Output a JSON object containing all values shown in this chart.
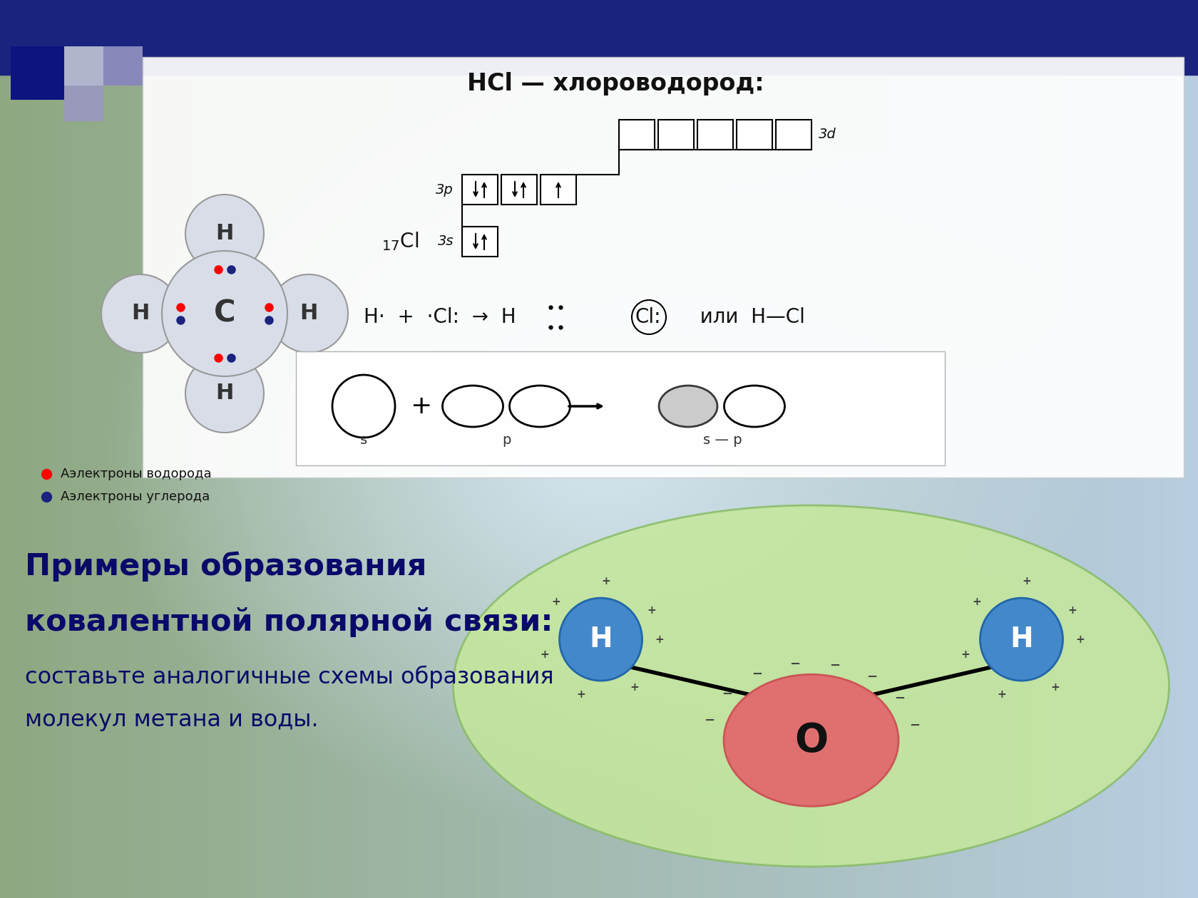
{
  "bg_top_color": "#8fa882",
  "bg_bottom_color": "#c5d8e8",
  "blue_bar_color": "#1a237e",
  "title_hcl": "HCl — хлороводород:",
  "main_text_line1": "Примеры образования",
  "main_text_line2": "ковалентной полярной связи:",
  "main_text_line3": "составьте аналогичные схемы образования",
  "main_text_line4": "молекул метана и воды.",
  "legend1": "Аэлектроны водорода",
  "legend2": "Аэлектроны углерода"
}
